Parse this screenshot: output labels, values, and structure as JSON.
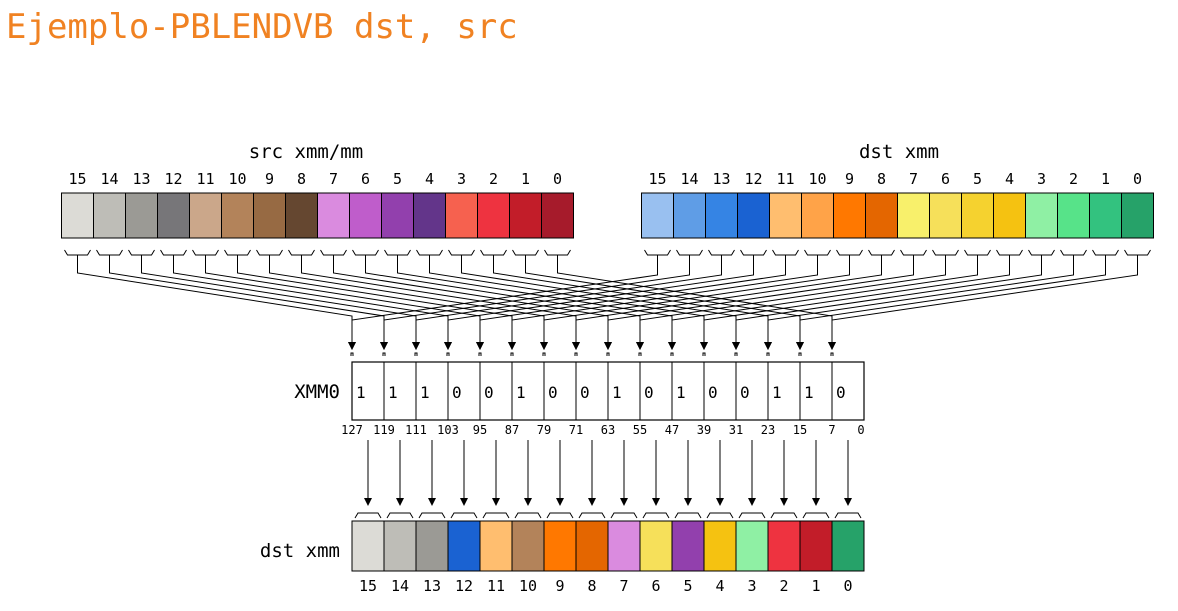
{
  "title": "Ejemplo-PBLENDVB dst, src",
  "src": {
    "label": "src xmm/mm",
    "indices": [
      "15",
      "14",
      "13",
      "12",
      "11",
      "10",
      "9",
      "8",
      "7",
      "6",
      "5",
      "4",
      "3",
      "2",
      "1",
      "0"
    ],
    "colors": [
      "#dcdbd6",
      "#bebdb7",
      "#9b9a95",
      "#777679",
      "#cba78a",
      "#b3835a",
      "#976a43",
      "#654730",
      "#da8bdf",
      "#bf5dcb",
      "#9240ad",
      "#63358a",
      "#f6614f",
      "#ee3340",
      "#c21d29",
      "#a61b2b"
    ]
  },
  "dst": {
    "label": "dst xmm",
    "indices": [
      "15",
      "14",
      "13",
      "12",
      "11",
      "10",
      "9",
      "8",
      "7",
      "6",
      "5",
      "4",
      "3",
      "2",
      "1",
      "0"
    ],
    "colors": [
      "#99c0f0",
      "#5f9de6",
      "#3584e4",
      "#1a62d2",
      "#ffbe6f",
      "#ffa348",
      "#ff7800",
      "#e46600",
      "#f8f06b",
      "#f6e05a",
      "#f5d22f",
      "#f5c211",
      "#8ff0a4",
      "#57e389",
      "#33c27f",
      "#26a269"
    ]
  },
  "mask": {
    "label": "XMM0",
    "bits": [
      "1",
      "1",
      "1",
      "0",
      "0",
      "1",
      "0",
      "0",
      "1",
      "0",
      "1",
      "0",
      "0",
      "1",
      "1",
      "0"
    ],
    "bit_positions": [
      "127",
      "119",
      "111",
      "103",
      "95",
      "87",
      "79",
      "71",
      "63",
      "55",
      "47",
      "39",
      "31",
      "23",
      "15",
      "7",
      "0"
    ]
  },
  "result": {
    "label": "dst xmm",
    "indices": [
      "15",
      "14",
      "13",
      "12",
      "11",
      "10",
      "9",
      "8",
      "7",
      "6",
      "5",
      "4",
      "3",
      "2",
      "1",
      "0"
    ],
    "colors": [
      "#dcdbd6",
      "#bebdb7",
      "#9b9a95",
      "#1a62d2",
      "#ffbe6f",
      "#b3835a",
      "#ff7800",
      "#e46600",
      "#da8bdf",
      "#f6e05a",
      "#9240ad",
      "#f5c211",
      "#8ff0a4",
      "#ee3340",
      "#c21d29",
      "#26a269"
    ]
  }
}
